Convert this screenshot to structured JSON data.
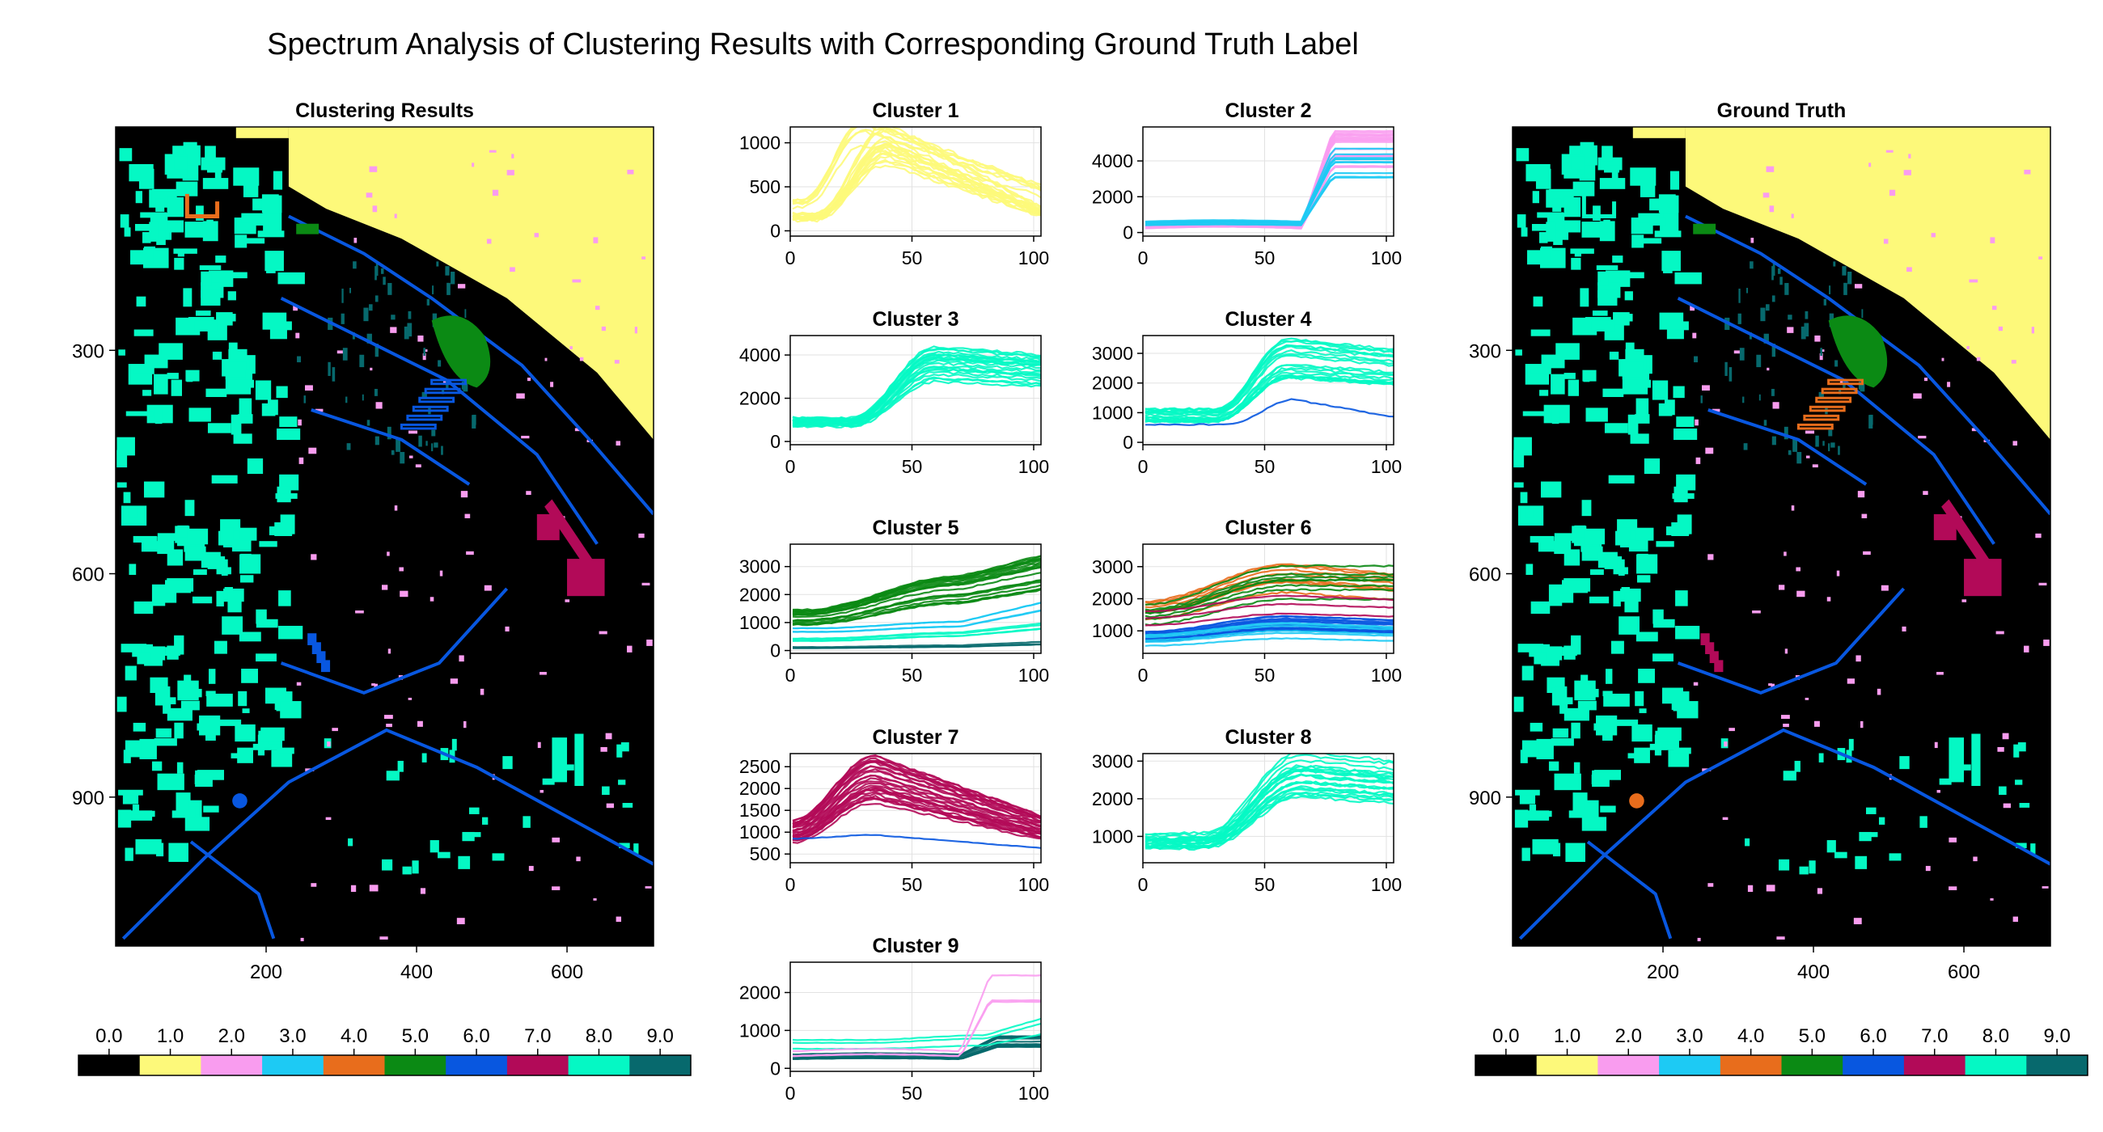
{
  "title": "Spectrum Analysis of Clustering Results with Corresponding Ground Truth Label",
  "colors": [
    "#000000",
    "#fdf97a",
    "#f99cef",
    "#1dcaf4",
    "#e86d1c",
    "#0b8a14",
    "#0857e0",
    "#b20a58",
    "#05f8c4",
    "#07696d"
  ],
  "chart_data": [
    {
      "type": "heatmap",
      "title": "Clustering Results",
      "xlim": [
        0,
        715
      ],
      "ylim": [
        1100,
        0
      ],
      "xticks": [
        200,
        400,
        600
      ],
      "yticks": [
        300,
        600,
        900
      ],
      "colorbar_ticks": [
        "0.0",
        "1.0",
        "2.0",
        "3.0",
        "4.0",
        "5.0",
        "6.0",
        "7.0",
        "8.0",
        "9.0"
      ],
      "colorbar_range": [
        0,
        9
      ]
    },
    {
      "type": "heatmap",
      "title": "Ground Truth",
      "xlim": [
        0,
        715
      ],
      "ylim": [
        1100,
        0
      ],
      "xticks": [
        200,
        400,
        600
      ],
      "yticks": [
        300,
        600,
        900
      ],
      "colorbar_ticks": [
        "0.0",
        "1.0",
        "2.0",
        "3.0",
        "4.0",
        "5.0",
        "6.0",
        "7.0",
        "8.0",
        "9.0"
      ],
      "colorbar_range": [
        0,
        9
      ]
    },
    {
      "type": "line",
      "title": "Cluster 1",
      "xlim": [
        0,
        103
      ],
      "xticks": [
        0,
        50,
        100
      ],
      "ylim": [
        -60,
        1180
      ],
      "yticks": [
        0,
        500,
        1000
      ],
      "series": [
        {
          "color": 1,
          "count": 18,
          "base": 160,
          "peak": 1000,
          "riseStart": 10,
          "riseEnd": 40,
          "tail": 220
        },
        {
          "color": 1,
          "count": 6,
          "base": 300,
          "peak": 1100,
          "riseStart": 5,
          "riseEnd": 30,
          "tail": 450
        }
      ]
    },
    {
      "type": "line",
      "title": "Cluster 2",
      "xlim": [
        0,
        103
      ],
      "xticks": [
        0,
        50,
        100
      ],
      "ylim": [
        -200,
        5900
      ],
      "yticks": [
        0,
        2000,
        4000
      ],
      "series": [
        {
          "color": 2,
          "count": 16,
          "base": 300,
          "peak": 500,
          "riseStart": 65,
          "riseEnd": 78,
          "tail": 4800
        },
        {
          "color": 3,
          "count": 10,
          "base": 500,
          "peak": 600,
          "riseStart": 65,
          "riseEnd": 78,
          "tail": 3800
        }
      ]
    },
    {
      "type": "line",
      "title": "Cluster 3",
      "xlim": [
        0,
        103
      ],
      "xticks": [
        0,
        50,
        100
      ],
      "ylim": [
        -150,
        4900
      ],
      "yticks": [
        0,
        2000,
        4000
      ],
      "series": [
        {
          "color": 8,
          "count": 22,
          "base": 900,
          "peak": 3600,
          "riseStart": 25,
          "riseEnd": 60,
          "tail": 3300
        }
      ]
    },
    {
      "type": "line",
      "title": "Cluster 4",
      "xlim": [
        0,
        103
      ],
      "xticks": [
        0,
        50,
        100
      ],
      "ylim": [
        -80,
        3600
      ],
      "yticks": [
        0,
        1000,
        2000,
        3000
      ],
      "series": [
        {
          "color": 8,
          "count": 20,
          "base": 900,
          "peak": 2800,
          "riseStart": 30,
          "riseEnd": 60,
          "tail": 2500
        },
        {
          "color": 6,
          "count": 1,
          "base": 600,
          "peak": 1450,
          "riseStart": 35,
          "riseEnd": 62,
          "tail": 850
        }
      ]
    },
    {
      "type": "line",
      "title": "Cluster 5",
      "xlim": [
        0,
        103
      ],
      "xticks": [
        0,
        50,
        100
      ],
      "ylim": [
        -100,
        3800
      ],
      "yticks": [
        0,
        1000,
        2000,
        3000
      ],
      "series": [
        {
          "color": 5,
          "count": 20,
          "base": 1200,
          "peak": 2200,
          "riseStart": 5,
          "riseEnd": 70,
          "tail": 2800
        },
        {
          "color": 3,
          "count": 4,
          "base": 700,
          "peak": 900,
          "riseStart": 10,
          "riseEnd": 70,
          "tail": 1500
        },
        {
          "color": 8,
          "count": 4,
          "base": 400,
          "peak": 600,
          "riseStart": 10,
          "riseEnd": 70,
          "tail": 900
        },
        {
          "color": 9,
          "count": 3,
          "base": 100,
          "peak": 150,
          "riseStart": 10,
          "riseEnd": 70,
          "tail": 250
        }
      ]
    },
    {
      "type": "line",
      "title": "Cluster 6",
      "xlim": [
        0,
        103
      ],
      "xticks": [
        0,
        50,
        100
      ],
      "ylim": [
        300,
        3700
      ],
      "yticks": [
        1000,
        2000,
        3000
      ],
      "series": [
        {
          "color": 4,
          "count": 8,
          "base": 1800,
          "peak": 2900,
          "riseStart": 0,
          "riseEnd": 60,
          "tail": 2600
        },
        {
          "color": 5,
          "count": 8,
          "base": 1500,
          "peak": 2500,
          "riseStart": 0,
          "riseEnd": 60,
          "tail": 2500
        },
        {
          "color": 6,
          "count": 14,
          "base": 800,
          "peak": 1200,
          "riseStart": 0,
          "riseEnd": 60,
          "tail": 1100
        },
        {
          "color": 3,
          "count": 6,
          "base": 700,
          "peak": 1000,
          "riseStart": 0,
          "riseEnd": 60,
          "tail": 900
        },
        {
          "color": 7,
          "count": 3,
          "base": 1300,
          "peak": 1700,
          "riseStart": 0,
          "riseEnd": 60,
          "tail": 1600
        }
      ]
    },
    {
      "type": "line",
      "title": "Cluster 7",
      "xlim": [
        0,
        103
      ],
      "xticks": [
        0,
        50,
        100
      ],
      "ylim": [
        300,
        2800
      ],
      "yticks": [
        500,
        1000,
        1500,
        2000,
        2500
      ],
      "series": [
        {
          "color": 7,
          "count": 28,
          "base": 1000,
          "peak": 2200,
          "riseStart": 0,
          "riseEnd": 35,
          "tail": 1100
        },
        {
          "color": 6,
          "count": 1,
          "base": 1000,
          "peak": 1100,
          "riseStart": 0,
          "riseEnd": 35,
          "tail": 750
        }
      ]
    },
    {
      "type": "line",
      "title": "Cluster 8",
      "xlim": [
        0,
        103
      ],
      "xticks": [
        0,
        50,
        100
      ],
      "ylim": [
        300,
        3200
      ],
      "yticks": [
        1000,
        2000,
        3000
      ],
      "series": [
        {
          "color": 8,
          "count": 22,
          "base": 900,
          "peak": 2700,
          "riseStart": 25,
          "riseEnd": 65,
          "tail": 2500
        }
      ]
    },
    {
      "type": "line",
      "title": "Cluster 9",
      "xlim": [
        0,
        103
      ],
      "xticks": [
        0,
        50,
        100
      ],
      "ylim": [
        -80,
        2800
      ],
      "yticks": [
        0,
        1000,
        2000
      ],
      "series": [
        {
          "color": 9,
          "count": 14,
          "base": 300,
          "peak": 350,
          "riseStart": 70,
          "riseEnd": 85,
          "tail": 700
        },
        {
          "color": 8,
          "count": 3,
          "base": 600,
          "peak": 700,
          "riseStart": 30,
          "riseEnd": 80,
          "tail": 1050
        },
        {
          "color": 2,
          "count": 3,
          "base": 400,
          "peak": 500,
          "riseStart": 70,
          "riseEnd": 82,
          "tail": 2200
        }
      ]
    }
  ]
}
